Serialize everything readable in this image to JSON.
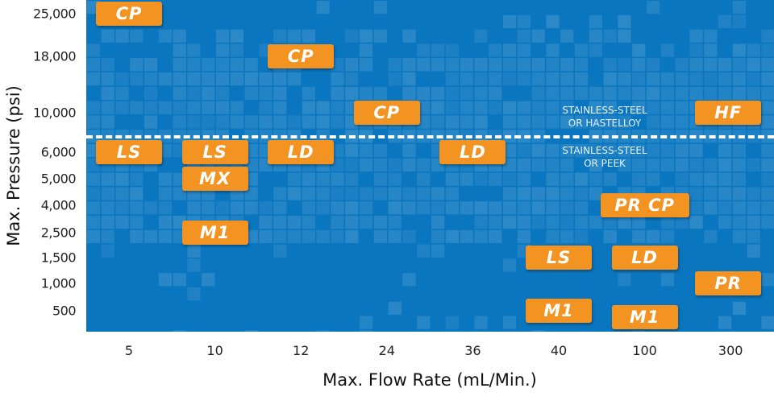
{
  "chart_data": {
    "type": "table",
    "xlabel": "Max. Flow Rate (mL/Min.)",
    "ylabel": "Max. Pressure (psi)",
    "x_categories": [
      "5",
      "10",
      "12",
      "24",
      "36",
      "40",
      "100",
      "300"
    ],
    "y_ticks": [
      "25,000",
      "18,000",
      "10,000",
      "6,000",
      "5,000",
      "4,000",
      "2,500",
      "1,500",
      "1,000",
      "500"
    ],
    "divider": {
      "between": [
        "10,000",
        "6,000"
      ],
      "above": [
        "STAINLESS-STEEL",
        "OR HASTELLOY"
      ],
      "below": [
        "STAINLESS-STEEL",
        "OR PEEK"
      ]
    },
    "badges": [
      {
        "label": "CP",
        "flow": "5",
        "pressure": "25,000"
      },
      {
        "label": "CP",
        "flow": "12",
        "pressure": "18,000"
      },
      {
        "label": "CP",
        "flow": "24",
        "pressure": "10,000"
      },
      {
        "label": "HF",
        "flow": "300",
        "pressure": "10,000"
      },
      {
        "label": "LS",
        "flow": "5",
        "pressure": "6,000"
      },
      {
        "label": "LS",
        "flow": "10",
        "pressure": "6,000"
      },
      {
        "label": "LD",
        "flow": "12",
        "pressure": "6,000"
      },
      {
        "label": "LD",
        "flow": "36",
        "pressure": "6,000"
      },
      {
        "label": "MX",
        "flow": "10",
        "pressure": "5,000"
      },
      {
        "label": "PR  CP",
        "flow": "100",
        "pressure": "4,000"
      },
      {
        "label": "M1",
        "flow": "10",
        "pressure": "2,500"
      },
      {
        "label": "LS",
        "flow": "40",
        "pressure": "1,500"
      },
      {
        "label": "LD",
        "flow": "100",
        "pressure": "1,500"
      },
      {
        "label": "PR",
        "flow": "300",
        "pressure": "1,000"
      },
      {
        "label": "M1",
        "flow": "40",
        "pressure": "500"
      },
      {
        "label": "M1",
        "flow": "100",
        "pressure": "500"
      }
    ],
    "colors": {
      "background": "#0a76bf",
      "badge": "#f39322",
      "divider": "#ffffff"
    }
  }
}
